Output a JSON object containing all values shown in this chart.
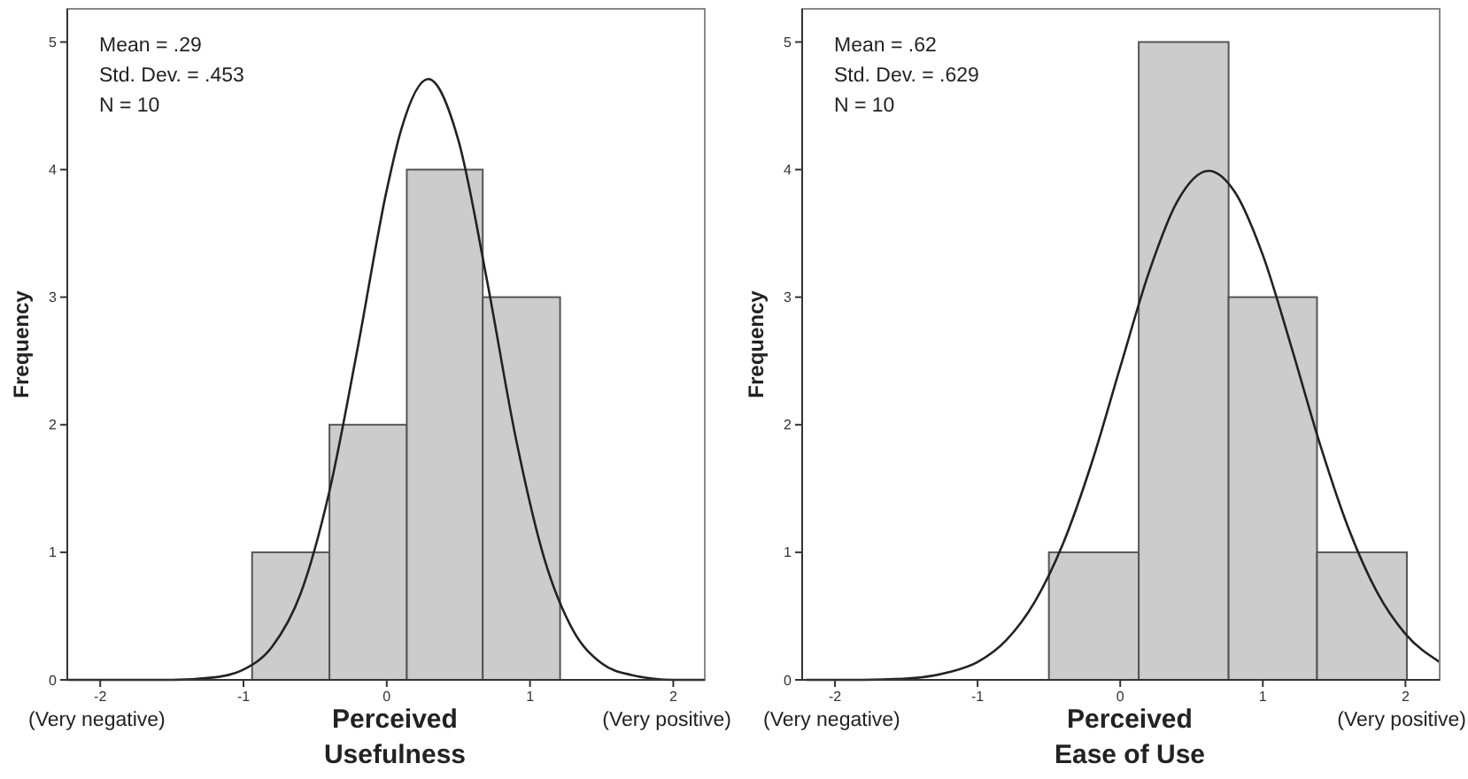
{
  "chart_data": [
    {
      "type": "histogram",
      "xlabel": "Perceived Usefulness",
      "ylabel": "Frequency",
      "xlim": [
        -2.23,
        2.22
      ],
      "ylim": [
        0,
        5.26
      ],
      "xticks": [
        -2,
        -1,
        0,
        1,
        2
      ],
      "yticks": [
        0,
        1,
        2,
        3,
        4,
        5
      ],
      "grid": false,
      "annotations": [
        "Mean = .29",
        "Std. Dev. = .453",
        "N = 10",
        "(Very negative)",
        "(Very positive)"
      ],
      "series": [
        {
          "type": "histogram",
          "bins": [
            -0.94,
            -0.4,
            0.14,
            0.67,
            1.21
          ],
          "values": [
            1,
            2,
            4,
            3
          ],
          "color": "#cccccc"
        },
        {
          "type": "line",
          "color": "#222222",
          "x": [
            -2.23,
            -1.5,
            -1.2,
            -1.0,
            -0.8,
            -0.6,
            -0.4,
            -0.2,
            0,
            0.1,
            0.29,
            0.5,
            0.7,
            0.9,
            1.1,
            1.3,
            1.5,
            1.7,
            2.0,
            2.22
          ],
          "values": [
            0,
            0,
            0.02,
            0.08,
            0.26,
            0.68,
            1.48,
            2.62,
            3.84,
            4.31,
            4.71,
            4.23,
            3.13,
            1.9,
            0.95,
            0.39,
            0.13,
            0.04,
            0,
            0
          ]
        }
      ]
    },
    {
      "type": "histogram",
      "xlabel": "Perceived Ease of Use",
      "ylabel": "Frequency",
      "xlim": [
        -2.23,
        2.24
      ],
      "ylim": [
        0,
        5.26
      ],
      "xticks": [
        -2,
        -1,
        0,
        1,
        2
      ],
      "yticks": [
        0,
        1,
        2,
        3,
        4,
        5
      ],
      "grid": false,
      "annotations": [
        "Mean = .62",
        "Std. Dev. = .629",
        "N = 10",
        "(Very negative)",
        "(Very positive)"
      ],
      "series": [
        {
          "type": "histogram",
          "bins": [
            -0.5,
            0.13,
            0.76,
            1.38,
            2.01
          ],
          "values": [
            1,
            5,
            3,
            1
          ],
          "color": "#cccccc"
        },
        {
          "type": "line",
          "color": "#222222",
          "x": [
            -2.2,
            -1.8,
            -1.5,
            -1.2,
            -1.0,
            -0.8,
            -0.6,
            -0.4,
            -0.2,
            0,
            0.2,
            0.4,
            0.62,
            0.8,
            1.0,
            1.2,
            1.4,
            1.6,
            1.8,
            2.0,
            2.24
          ],
          "values": [
            0,
            0,
            0.01,
            0.06,
            0.14,
            0.31,
            0.61,
            1.07,
            1.7,
            2.45,
            3.19,
            3.75,
            3.99,
            3.83,
            3.33,
            2.61,
            1.85,
            1.19,
            0.69,
            0.36,
            0.14
          ]
        }
      ]
    }
  ]
}
